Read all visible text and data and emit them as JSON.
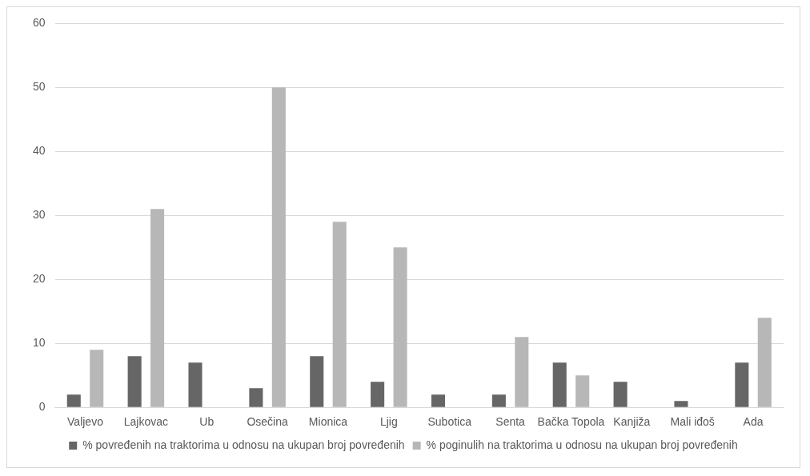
{
  "chart_data": {
    "type": "bar",
    "categories": [
      "Valjevo",
      "Lajkovac",
      "Ub",
      "Osečina",
      "Mionica",
      "Ljig",
      "Subotica",
      "Senta",
      "Bačka Topola",
      "Kanjiža",
      "Mali iđoš",
      "Ada"
    ],
    "series": [
      {
        "name": "% povređenih na traktorima u odnosu na ukupan broj povređenih",
        "color": "#666666",
        "values": [
          2,
          8,
          7,
          3,
          8,
          4,
          2,
          2,
          7,
          4,
          1,
          7
        ]
      },
      {
        "name": "% poginulih na traktorima u odnosu na ukupan broj povređenih",
        "color": "#b7b7b7",
        "values": [
          9,
          31,
          0,
          50,
          29,
          25,
          0,
          11,
          5,
          0,
          0,
          14
        ]
      }
    ],
    "ylim": [
      0,
      60
    ],
    "yticks": [
      0,
      10,
      20,
      30,
      40,
      50,
      60
    ],
    "grid": "y",
    "legend": "bottom"
  }
}
